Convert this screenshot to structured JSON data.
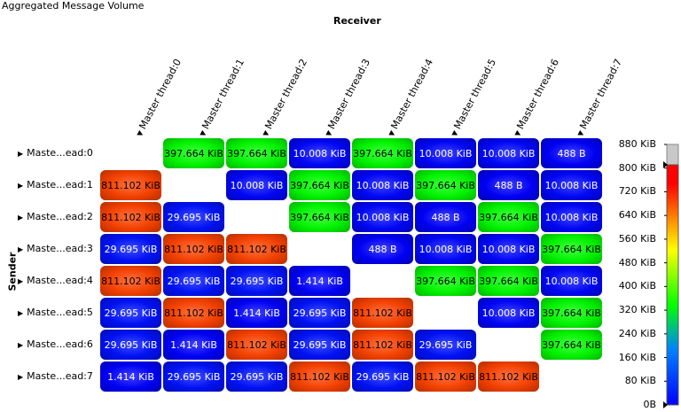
{
  "chart_data": {
    "type": "heatmap",
    "title": "Aggregated Message Volume",
    "xlabel": "Receiver",
    "ylabel": "Sender",
    "columns": [
      "Master thread:0",
      "Master thread:1",
      "Master thread:2",
      "Master thread:3",
      "Master thread:4",
      "Master thread:5",
      "Master thread:6",
      "Master thread:7"
    ],
    "rows": [
      "Maste...ead:0",
      "Maste...ead:1",
      "Maste...ead:2",
      "Maste...ead:3",
      "Maste...ead:4",
      "Maste...ead:5",
      "Maste...ead:6",
      "Maste...ead:7"
    ],
    "cells": [
      [
        "",
        "397.664 KiB",
        "397.664 KiB",
        "10.008 KiB",
        "397.664 KiB",
        "10.008 KiB",
        "10.008 KiB",
        "488 B"
      ],
      [
        "811.102 KiB",
        "",
        "10.008 KiB",
        "397.664 KiB",
        "10.008 KiB",
        "397.664 KiB",
        "488 B",
        "10.008 KiB"
      ],
      [
        "811.102 KiB",
        "29.695 KiB",
        "",
        "397.664 KiB",
        "10.008 KiB",
        "488 B",
        "397.664 KiB",
        "10.008 KiB"
      ],
      [
        "29.695 KiB",
        "811.102 KiB",
        "811.102 KiB",
        "",
        "488 B",
        "10.008 KiB",
        "10.008 KiB",
        "397.664 KiB"
      ],
      [
        "811.102 KiB",
        "29.695 KiB",
        "29.695 KiB",
        "1.414 KiB",
        "",
        "397.664 KiB",
        "397.664 KiB",
        "10.008 KiB"
      ],
      [
        "29.695 KiB",
        "811.102 KiB",
        "1.414 KiB",
        "29.695 KiB",
        "811.102 KiB",
        "",
        "10.008 KiB",
        "397.664 KiB"
      ],
      [
        "29.695 KiB",
        "1.414 KiB",
        "811.102 KiB",
        "29.695 KiB",
        "811.102 KiB",
        "29.695 KiB",
        "",
        "397.664 KiB"
      ],
      [
        "1.414 KiB",
        "29.695 KiB",
        "29.695 KiB",
        "811.102 KiB",
        "29.695 KiB",
        "811.102 KiB",
        "811.102 KiB",
        ""
      ]
    ],
    "values_kib": [
      [
        null,
        397.664,
        397.664,
        10.008,
        397.664,
        10.008,
        10.008,
        0.4766
      ],
      [
        811.102,
        null,
        10.008,
        397.664,
        10.008,
        397.664,
        0.4766,
        10.008
      ],
      [
        811.102,
        29.695,
        null,
        397.664,
        10.008,
        0.4766,
        397.664,
        10.008
      ],
      [
        29.695,
        811.102,
        811.102,
        null,
        0.4766,
        10.008,
        10.008,
        397.664
      ],
      [
        811.102,
        29.695,
        29.695,
        1.414,
        null,
        397.664,
        397.664,
        10.008
      ],
      [
        29.695,
        811.102,
        1.414,
        29.695,
        811.102,
        null,
        10.008,
        397.664
      ],
      [
        29.695,
        1.414,
        811.102,
        29.695,
        811.102,
        29.695,
        null,
        397.664
      ],
      [
        1.414,
        29.695,
        29.695,
        811.102,
        29.695,
        811.102,
        811.102,
        null
      ]
    ],
    "legend": {
      "ticks": [
        "880 KiB",
        "800 KiB",
        "720 KiB",
        "640 KiB",
        "560 KiB",
        "480 KiB",
        "400 KiB",
        "320 KiB",
        "240 KiB",
        "160 KiB",
        "80 KiB",
        "0B"
      ],
      "tick_values": [
        880,
        800,
        720,
        640,
        560,
        480,
        400,
        320,
        240,
        160,
        80,
        0
      ],
      "range": [
        0,
        880
      ],
      "selected_max": 811.102,
      "colors": [
        "#0000ff",
        "#00a0ff",
        "#00ff00",
        "#ffff00",
        "#ff0000"
      ]
    }
  }
}
